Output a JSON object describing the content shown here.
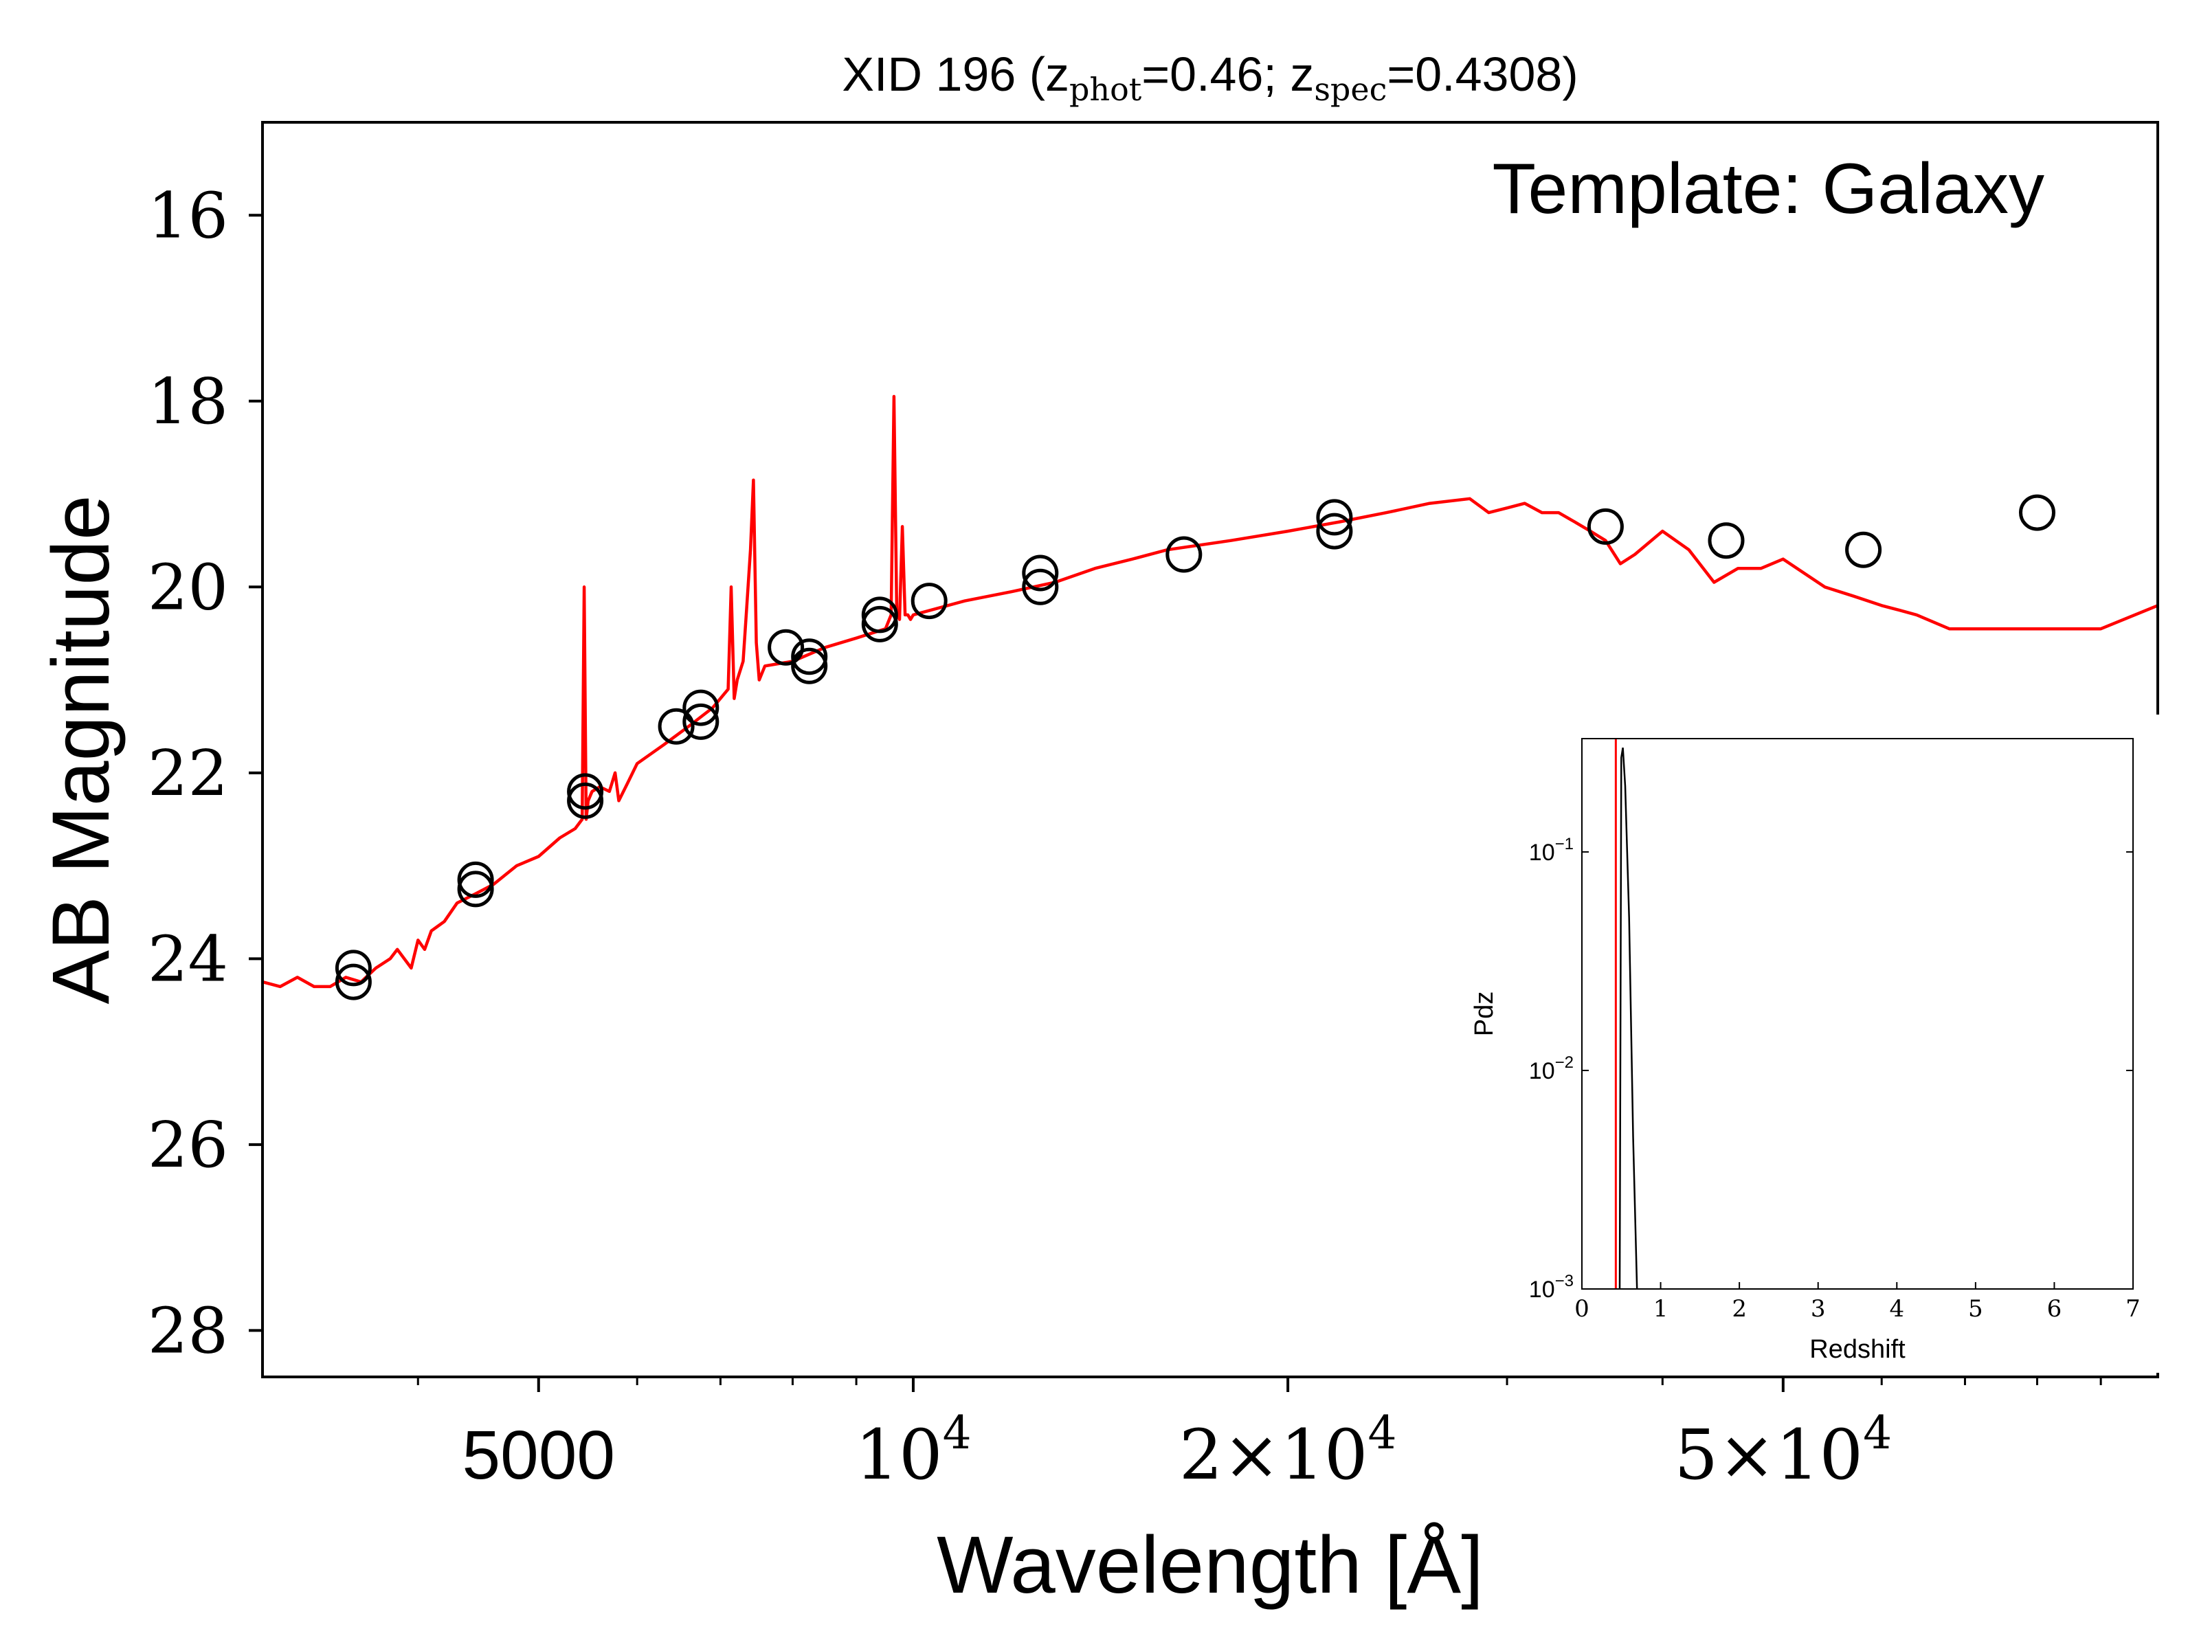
{
  "chart_data": [
    {
      "type": "scatter",
      "title_prefix": "XID 196 (z",
      "title_phot_sub": "phot",
      "title_mid": "=0.46; z",
      "title_spec_sub": "spec",
      "title_suffix": "=0.4308)",
      "annotation": "Template: Galaxy",
      "xlabel": "Wavelength [Å]",
      "ylabel": "AB Magnitude",
      "xscale": "log",
      "xlim": [
        3000,
        100000
      ],
      "ylim": [
        28.5,
        15.0
      ],
      "y_inverted": true,
      "xticks": [
        {
          "value": 5000,
          "label": "5000"
        },
        {
          "value": 10000,
          "base": "10",
          "exp": "4",
          "mult": ""
        },
        {
          "value": 20000,
          "base": "10",
          "exp": "4",
          "mult": "2×"
        },
        {
          "value": 50000,
          "base": "10",
          "exp": "4",
          "mult": "5×"
        }
      ],
      "xminor": [
        4000,
        6000,
        7000,
        8000,
        9000,
        30000,
        40000,
        60000,
        70000,
        80000,
        90000
      ],
      "yticks": [
        16,
        18,
        20,
        22,
        24,
        26,
        28
      ],
      "photometry": {
        "marker": "open-circle",
        "color": "#000000",
        "x": [
          3550,
          3550,
          4450,
          4450,
          5450,
          5450,
          6450,
          6750,
          6750,
          7900,
          8250,
          8250,
          9400,
          9400,
          10300,
          12650,
          12650,
          16500,
          21800,
          21800,
          36000,
          45000,
          58000,
          80000
        ],
        "y": [
          24.1,
          24.25,
          23.15,
          23.25,
          22.2,
          22.3,
          21.5,
          21.3,
          21.45,
          20.65,
          20.75,
          20.85,
          20.3,
          20.4,
          20.15,
          19.85,
          20.0,
          19.65,
          19.25,
          19.4,
          19.35,
          19.5,
          19.6,
          19.2
        ]
      },
      "template": {
        "color": "#ff0000",
        "x": [
          3000,
          3100,
          3200,
          3300,
          3400,
          3500,
          3600,
          3700,
          3800,
          3850,
          3950,
          4000,
          4050,
          4100,
          4200,
          4300,
          4450,
          4600,
          4800,
          5000,
          5200,
          5350,
          5420,
          5440,
          5460,
          5480,
          5520,
          5600,
          5700,
          5760,
          5800,
          5900,
          6000,
          6300,
          6600,
          6900,
          7100,
          7140,
          7180,
          7220,
          7300,
          7350,
          7400,
          7440,
          7480,
          7520,
          7600,
          8000,
          8500,
          9000,
          9500,
          9600,
          9650,
          9700,
          9750,
          9800,
          9850,
          9900,
          9950,
          10000,
          11000,
          12000,
          13000,
          14000,
          15000,
          16000,
          18000,
          20000,
          22000,
          24000,
          26000,
          28000,
          29000,
          30000,
          31000,
          32000,
          33000,
          34000,
          35000,
          36000,
          37000,
          38000,
          40000,
          42000,
          44000,
          46000,
          48000,
          50000,
          54000,
          57000,
          60000,
          62000,
          64000,
          68000,
          75000,
          82000,
          90000,
          100000
        ],
        "y": [
          24.25,
          24.3,
          24.2,
          24.3,
          24.3,
          24.2,
          24.25,
          24.1,
          24.0,
          23.9,
          24.1,
          23.8,
          23.9,
          23.7,
          23.6,
          23.4,
          23.3,
          23.2,
          23.0,
          22.9,
          22.7,
          22.6,
          22.5,
          20.0,
          22.5,
          22.3,
          22.2,
          22.15,
          22.2,
          22.0,
          22.3,
          22.1,
          21.9,
          21.7,
          21.5,
          21.3,
          21.1,
          20.0,
          21.2,
          21.0,
          20.8,
          20.2,
          19.6,
          18.85,
          20.6,
          21.0,
          20.85,
          20.8,
          20.65,
          20.55,
          20.45,
          20.3,
          17.95,
          20.3,
          20.35,
          19.35,
          20.3,
          20.3,
          20.35,
          20.3,
          20.15,
          20.05,
          19.95,
          19.8,
          19.7,
          19.6,
          19.5,
          19.4,
          19.3,
          19.2,
          19.1,
          19.05,
          19.2,
          19.15,
          19.1,
          19.2,
          19.2,
          19.3,
          19.4,
          19.5,
          19.75,
          19.65,
          19.4,
          19.6,
          19.95,
          19.8,
          19.8,
          19.7,
          20.0,
          20.1,
          20.2,
          20.25,
          20.3,
          20.45,
          20.45,
          20.45,
          20.45,
          20.2
        ]
      }
    },
    {
      "type": "line",
      "xlabel": "Redshift",
      "ylabel": "Pdz",
      "xlim": [
        0,
        7
      ],
      "ylim": [
        0.001,
        0.33
      ],
      "yscale": "log",
      "xticks": [
        0,
        1,
        2,
        3,
        4,
        5,
        6,
        7
      ],
      "yticks": [
        {
          "value": 0.1,
          "base": "10",
          "exp": "−1"
        },
        {
          "value": 0.01,
          "base": "10",
          "exp": "−2"
        },
        {
          "value": 0.001,
          "base": "10",
          "exp": "−3"
        }
      ],
      "pdz": {
        "color": "#000000",
        "x": [
          0.48,
          0.5,
          0.52,
          0.55,
          0.6,
          0.65,
          0.7
        ],
        "y": [
          0.001,
          0.27,
          0.3,
          0.2,
          0.05,
          0.005,
          0.001
        ]
      },
      "marker_line": {
        "color": "#ff0000",
        "x": 0.4308
      }
    }
  ]
}
